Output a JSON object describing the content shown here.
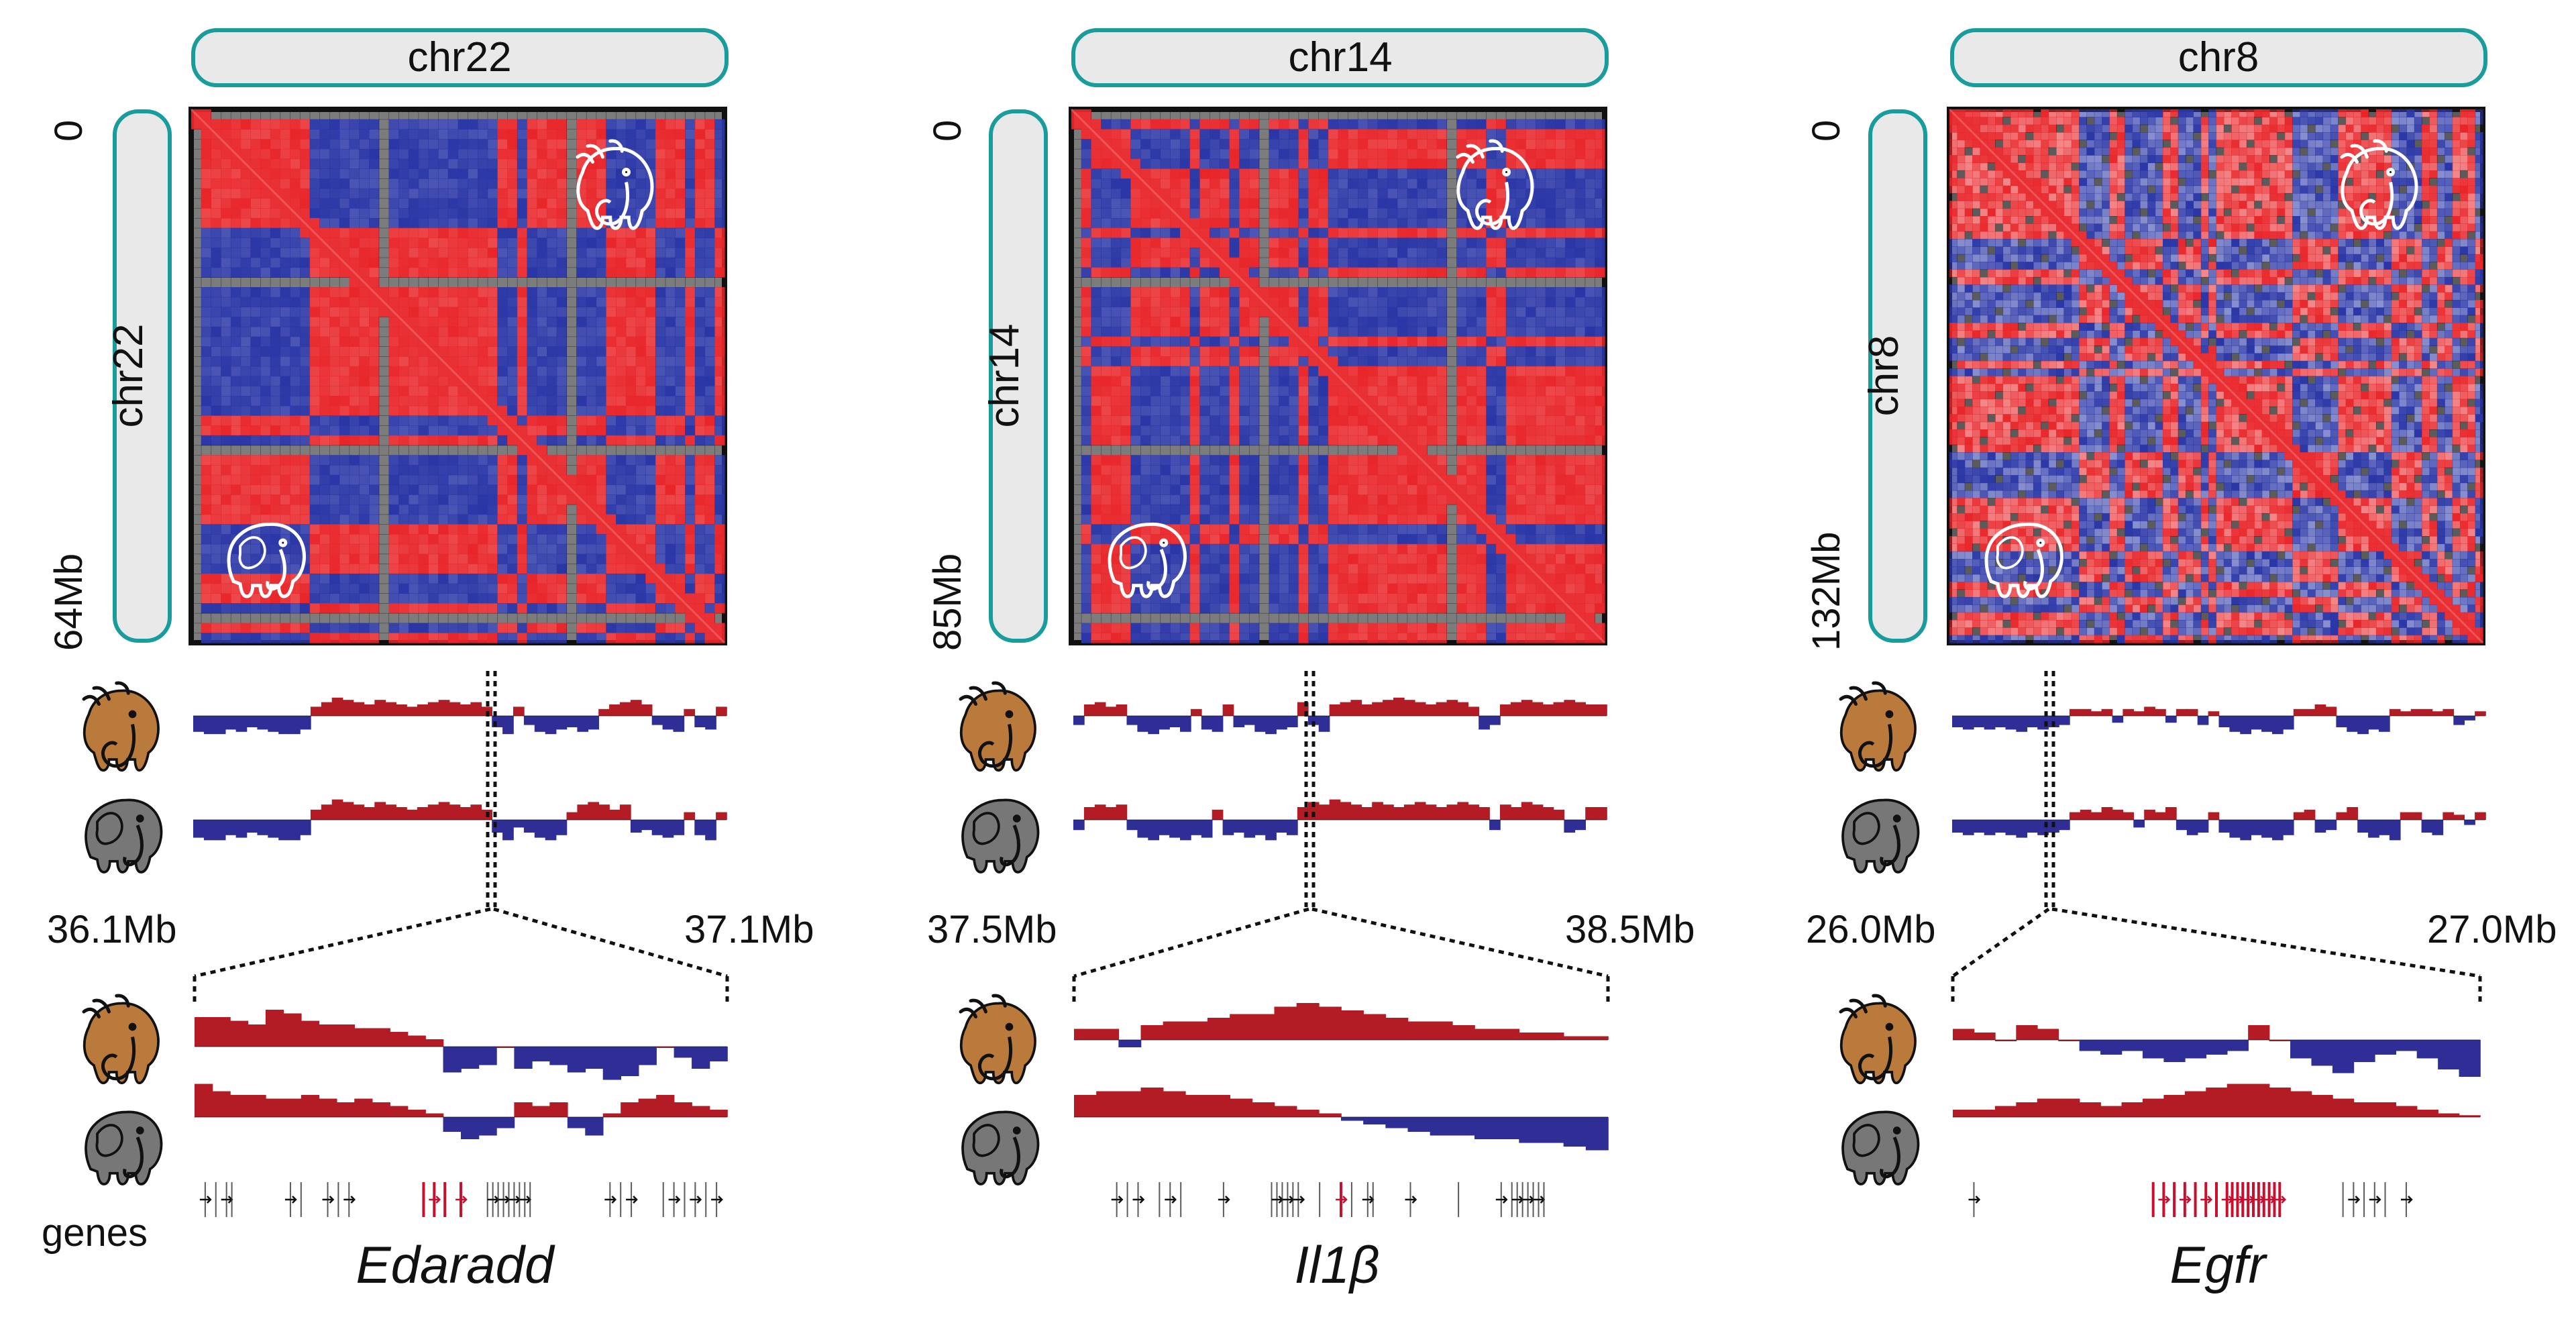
{
  "colors": {
    "positive": "#e8262a",
    "negative": "#2a36a6",
    "track_positive": "#b31c24",
    "track_negative": "#2e2e96",
    "frame": "#111111",
    "pill_fill": "#e9e9e9",
    "pill_stroke": "#199c9c",
    "mammoth_fur": "#b97a3c",
    "elephant_skin": "#777777",
    "highlight_gene": "#c8102e"
  },
  "icons": {
    "mammoth": "mammoth-icon",
    "elephant": "elephant-icon"
  },
  "genes_label": "genes",
  "panels": [
    {
      "chromosome": "chr22",
      "top_label": "chr22",
      "side_label": "chr22",
      "axis_start": "0",
      "axis_end": "64Mb",
      "zoom_start": "36.1Mb",
      "zoom_end": "37.1Mb",
      "gene": "Edaradd",
      "matrix_style": "blocky"
    },
    {
      "chromosome": "chr14",
      "top_label": "chr14",
      "side_label": "chr14",
      "axis_start": "0",
      "axis_end": "85Mb",
      "zoom_start": "37.5Mb",
      "zoom_end": "38.5Mb",
      "gene": "Il1β",
      "matrix_style": "blocky"
    },
    {
      "chromosome": "chr8",
      "top_label": "chr8",
      "side_label": "chr8",
      "axis_start": "0",
      "axis_end": "132Mb",
      "zoom_start": "26.0Mb",
      "zoom_end": "27.0Mb",
      "gene": "Egfr",
      "matrix_style": "fine"
    }
  ],
  "chart_data": [
    {
      "type": "heatmap",
      "title": "chr22",
      "description_of_values": "compartment correlation, positive red / negative blue",
      "tracks": {
        "mammoth_chromosome": [
          -0.7,
          -0.8,
          -0.8,
          -0.6,
          -0.7,
          -0.5,
          -0.6,
          -0.7,
          -0.8,
          -0.8,
          -0.6,
          0.4,
          0.6,
          0.8,
          0.7,
          0.6,
          0.5,
          0.7,
          0.6,
          0.5,
          0.4,
          0.5,
          0.6,
          0.7,
          0.6,
          0.5,
          0.6,
          0.4,
          -0.5,
          -0.8,
          0.4,
          -0.4,
          -0.7,
          -0.8,
          -0.6,
          -0.5,
          -0.7,
          -0.6,
          0.3,
          0.5,
          0.6,
          0.7,
          0.5,
          -0.4,
          -0.6,
          -0.7,
          0.3,
          -0.5,
          -0.6,
          0.4
        ],
        "elephant_chromosome": [
          -0.7,
          -0.8,
          -0.8,
          -0.6,
          -0.7,
          -0.5,
          -0.6,
          -0.7,
          -0.8,
          -0.8,
          -0.6,
          0.4,
          0.6,
          0.8,
          0.7,
          0.6,
          0.5,
          0.7,
          0.6,
          0.5,
          0.4,
          0.5,
          0.6,
          0.7,
          0.6,
          0.5,
          0.6,
          0.4,
          -0.5,
          -0.8,
          -0.3,
          -0.5,
          -0.7,
          -0.8,
          -0.6,
          0.3,
          0.6,
          0.7,
          0.6,
          0.4,
          0.6,
          -0.5,
          -0.4,
          -0.6,
          -0.7,
          -0.6,
          0.3,
          -0.6,
          -0.8,
          0.3
        ],
        "mammoth_zoom": [
          0.8,
          0.8,
          0.7,
          0.6,
          1.0,
          0.9,
          0.7,
          0.6,
          0.6,
          0.5,
          0.5,
          0.4,
          0.3,
          0.2,
          -0.7,
          -0.6,
          -0.5,
          0.0,
          -0.6,
          -0.4,
          -0.5,
          -0.7,
          -0.6,
          -0.9,
          -0.8,
          -0.5,
          0.0,
          -0.3,
          -0.6,
          -0.4
        ],
        "elephant_zoom": [
          0.9,
          0.7,
          0.6,
          0.6,
          0.5,
          0.5,
          0.6,
          0.5,
          0.4,
          0.5,
          0.4,
          0.3,
          0.2,
          0.1,
          -0.4,
          -0.6,
          -0.5,
          -0.3,
          0.4,
          0.3,
          0.4,
          -0.3,
          -0.5,
          0.1,
          0.4,
          0.5,
          0.6,
          0.4,
          0.3,
          0.2
        ],
        "genes": [
          0.02,
          0.04,
          0.06,
          0.07,
          0.18,
          0.2,
          0.25,
          0.27,
          0.29,
          0.43,
          0.45,
          0.47,
          0.5,
          0.55,
          0.56,
          0.57,
          0.58,
          0.59,
          0.6,
          0.61,
          0.62,
          0.63,
          0.78,
          0.8,
          0.82,
          0.88,
          0.9,
          0.92,
          0.94,
          0.96,
          0.98
        ],
        "highlight_genes": [
          0.43,
          0.45,
          0.47,
          0.5
        ]
      }
    },
    {
      "type": "heatmap",
      "title": "chr14",
      "description_of_values": "compartment correlation, positive red / negative blue",
      "tracks": {
        "mammoth_chromosome": [
          -0.4,
          0.5,
          0.6,
          0.4,
          0.5,
          -0.4,
          -0.7,
          -0.8,
          -0.6,
          -0.5,
          -0.7,
          0.3,
          -0.6,
          -0.7,
          0.5,
          -0.5,
          -0.4,
          -0.7,
          -0.8,
          -0.6,
          -0.5,
          0.6,
          -0.4,
          -0.7,
          0.5,
          0.6,
          0.7,
          0.5,
          0.6,
          0.7,
          0.8,
          0.7,
          0.6,
          0.5,
          0.6,
          0.7,
          0.6,
          0.4,
          -0.6,
          -0.4,
          0.5,
          0.6,
          0.7,
          0.6,
          0.5,
          0.6,
          0.7,
          0.6,
          0.5,
          0.5
        ],
        "elephant_chromosome": [
          -0.4,
          0.5,
          0.6,
          0.5,
          0.6,
          -0.4,
          -0.7,
          -0.8,
          -0.6,
          -0.7,
          -0.8,
          -0.6,
          -0.7,
          0.4,
          -0.6,
          -0.5,
          -0.7,
          -0.6,
          -0.8,
          -0.5,
          -0.6,
          0.5,
          0.7,
          0.6,
          0.8,
          0.7,
          0.6,
          0.5,
          0.7,
          0.6,
          0.5,
          0.6,
          0.7,
          0.6,
          0.5,
          0.6,
          0.7,
          0.6,
          0.5,
          -0.4,
          0.6,
          0.5,
          0.7,
          0.6,
          0.5,
          0.4,
          -0.5,
          -0.4,
          0.5,
          0.5
        ],
        "mammoth_zoom": [
          0.3,
          0.3,
          -0.2,
          0.4,
          0.5,
          0.5,
          0.6,
          0.7,
          0.7,
          0.9,
          1.0,
          0.9,
          0.8,
          0.7,
          0.6,
          0.5,
          0.5,
          0.4,
          0.3,
          0.3,
          0.2,
          0.2,
          0.1,
          0.1
        ],
        "elephant_zoom": [
          0.6,
          0.7,
          0.7,
          0.8,
          0.7,
          0.6,
          0.6,
          0.5,
          0.4,
          0.3,
          0.2,
          0.1,
          -0.1,
          -0.2,
          -0.3,
          -0.4,
          -0.5,
          -0.5,
          -0.6,
          -0.6,
          -0.7,
          -0.7,
          -0.8,
          -0.9
        ],
        "genes": [
          0.08,
          0.1,
          0.12,
          0.16,
          0.18,
          0.2,
          0.28,
          0.37,
          0.38,
          0.39,
          0.4,
          0.41,
          0.42,
          0.46,
          0.5,
          0.52,
          0.55,
          0.56,
          0.63,
          0.72,
          0.8,
          0.82,
          0.83,
          0.84,
          0.85,
          0.86,
          0.87,
          0.88
        ],
        "highlight_genes": [
          0.5
        ]
      }
    },
    {
      "type": "heatmap",
      "title": "chr8",
      "description_of_values": "compartment correlation, positive red / negative blue",
      "tracks": {
        "mammoth_chromosome": [
          -0.5,
          -0.6,
          -0.5,
          -0.6,
          -0.5,
          -0.6,
          -0.7,
          -0.5,
          -0.6,
          -0.5,
          -0.4,
          0.3,
          0.3,
          0.2,
          0.3,
          -0.3,
          0.3,
          0.2,
          0.4,
          0.3,
          -0.3,
          0.3,
          0.3,
          -0.4,
          0.2,
          -0.5,
          -0.7,
          -0.8,
          -0.6,
          -0.7,
          -0.8,
          -0.6,
          0.3,
          0.3,
          0.5,
          0.4,
          -0.5,
          -0.7,
          -0.8,
          -0.6,
          -0.7,
          0.3,
          0.2,
          0.3,
          0.3,
          0.2,
          0.3,
          -0.4,
          -0.2,
          0.2
        ],
        "elephant_chromosome": [
          -0.5,
          -0.6,
          -0.5,
          -0.6,
          -0.5,
          -0.6,
          -0.7,
          -0.5,
          -0.6,
          -0.5,
          -0.4,
          0.3,
          0.4,
          0.3,
          0.5,
          0.4,
          0.3,
          -0.3,
          0.4,
          0.3,
          0.5,
          -0.4,
          -0.6,
          -0.5,
          0.3,
          -0.5,
          -0.7,
          -0.8,
          -0.6,
          -0.7,
          -0.8,
          -0.6,
          0.3,
          0.4,
          -0.5,
          -0.4,
          0.3,
          0.5,
          -0.5,
          -0.7,
          -0.6,
          -0.8,
          0.3,
          0.3,
          -0.5,
          -0.6,
          0.3,
          0.2,
          -0.2,
          0.3
        ],
        "mammoth_zoom": [
          0.3,
          0.2,
          0.0,
          0.4,
          0.3,
          0.0,
          -0.3,
          -0.4,
          -0.3,
          -0.5,
          -0.6,
          -0.5,
          -0.4,
          -0.3,
          0.4,
          0.0,
          -0.5,
          -0.7,
          -0.9,
          -0.6,
          -0.4,
          -0.3,
          -0.5,
          -0.8,
          -1.0
        ],
        "elephant_zoom": [
          0.2,
          0.2,
          0.3,
          0.4,
          0.5,
          0.5,
          0.4,
          0.3,
          0.4,
          0.5,
          0.6,
          0.7,
          0.8,
          0.9,
          0.9,
          0.8,
          0.7,
          0.6,
          0.5,
          0.4,
          0.4,
          0.3,
          0.2,
          0.1,
          0.05
        ],
        "genes": [
          0.04,
          0.38,
          0.4,
          0.42,
          0.44,
          0.46,
          0.48,
          0.5,
          0.52,
          0.53,
          0.54,
          0.55,
          0.56,
          0.57,
          0.58,
          0.59,
          0.6,
          0.61,
          0.62,
          0.74,
          0.76,
          0.78,
          0.8,
          0.82,
          0.86
        ],
        "highlight_genes": [
          0.38,
          0.4,
          0.42,
          0.44,
          0.46,
          0.48,
          0.5,
          0.52,
          0.53,
          0.54,
          0.55,
          0.56,
          0.57,
          0.58,
          0.59,
          0.6,
          0.61,
          0.62
        ]
      }
    }
  ]
}
